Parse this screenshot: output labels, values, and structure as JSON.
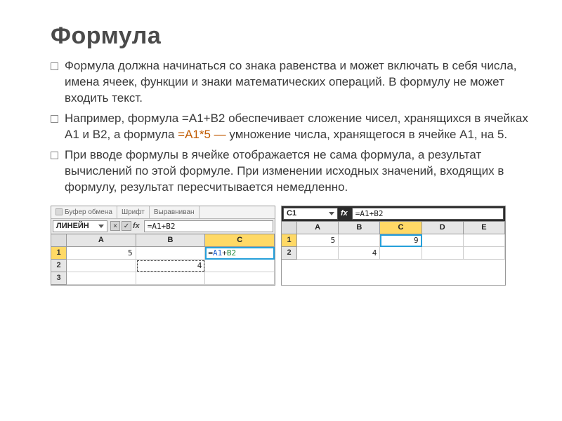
{
  "title": "Формула",
  "bullets": [
    "Формула должна начинаться со знака равенства и может включать в себя числа, имена ячеек, функции и знаки математических операций. В формулу не может входить текст.",
    "Например, формула =А1+В2 обеспечивает сложение чисел, хранящихся в ячейках А1 и В2, а формула =А1*5 — умножение числа, хранящегося в ячейке А1, на 5.",
    "При вводе формулы в ячейке отображается не сама формула, а результат вычислений по этой формуле. При изменении исходных значений, входящих в формулу, результат пересчитывается немедленно."
  ],
  "bullet2_parts": {
    "pre": "Например, формула =А1+В2 обеспечивает сложение чисел, хранящихся в ячейках А1 и В2, а формула ",
    "accent": "=А1*5 —",
    "post": " умножение числа, хранящегося в ячейке А1, на 5."
  },
  "left_shot": {
    "ribbon_groups": [
      "Буфер обмена",
      "Шрифт",
      "Выравниван"
    ],
    "namebox": "ЛИНЕЙН",
    "fx": "fx",
    "buttons": [
      "×",
      "✓"
    ],
    "formula": "=A1+B2",
    "columns": [
      "A",
      "B",
      "C"
    ],
    "selected_col": "C",
    "rows": [
      "1",
      "2",
      "3"
    ],
    "selected_row": "1",
    "cells": {
      "A1": "5",
      "B2": "4",
      "C1_prefix": "=",
      "C1_refA": "A1",
      "C1_op": "+",
      "C1_refB": "B2"
    }
  },
  "right_shot": {
    "namebox": "C1",
    "fx": "fx",
    "formula": "=A1+B2",
    "columns": [
      "A",
      "B",
      "C",
      "D",
      "E"
    ],
    "selected_col": "C",
    "rows": [
      "1",
      "2"
    ],
    "selected_row": "1",
    "cells": {
      "A1": "5",
      "B2": "4",
      "C1": "9"
    }
  },
  "colors": {
    "accent_text": "#c05a00",
    "selection_header": "#ffd966",
    "selection_border": "#26a0da",
    "ref_a": "#1a5fd0",
    "ref_b": "#1f8a3b"
  }
}
